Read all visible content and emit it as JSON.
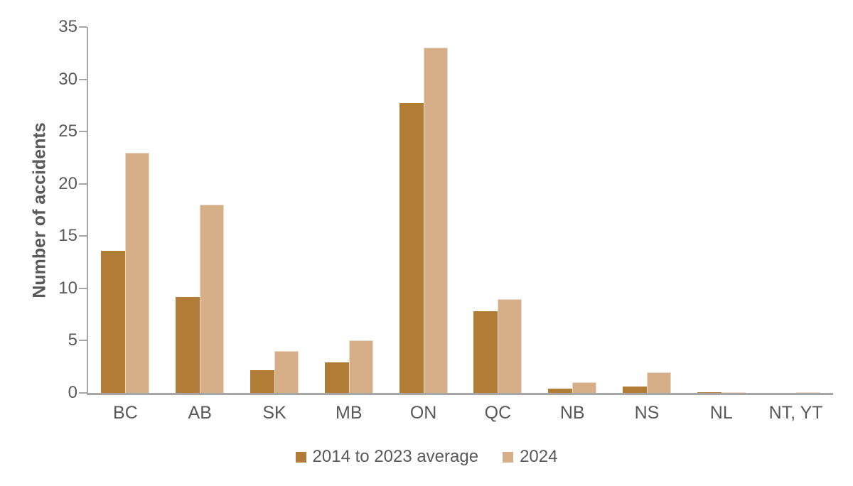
{
  "chart_data": {
    "type": "bar",
    "title": "",
    "ylabel": "Number of accidents",
    "xlabel": "",
    "categories": [
      "BC",
      "AB",
      "SK",
      "MB",
      "ON",
      "QC",
      "NB",
      "NS",
      "NL",
      "NT, YT"
    ],
    "series": [
      {
        "name": "2014 to 2023 average",
        "color": "#B17D36",
        "values": [
          13.6,
          9.2,
          2.2,
          2.9,
          27.7,
          7.8,
          0.4,
          0.6,
          0.1,
          0
        ]
      },
      {
        "name": "2024",
        "color": "#D6AE88",
        "values": [
          23,
          18,
          4,
          5,
          33,
          9,
          1,
          2,
          0,
          0
        ]
      }
    ],
    "ylim": [
      0,
      35
    ],
    "yticks": [
      0,
      5,
      10,
      15,
      20,
      25,
      30,
      35
    ],
    "grid": false,
    "legend_position": "bottom",
    "axis_color": "#A6A6A6",
    "text_color": "#595959",
    "background_color": "#FFFFFF"
  }
}
